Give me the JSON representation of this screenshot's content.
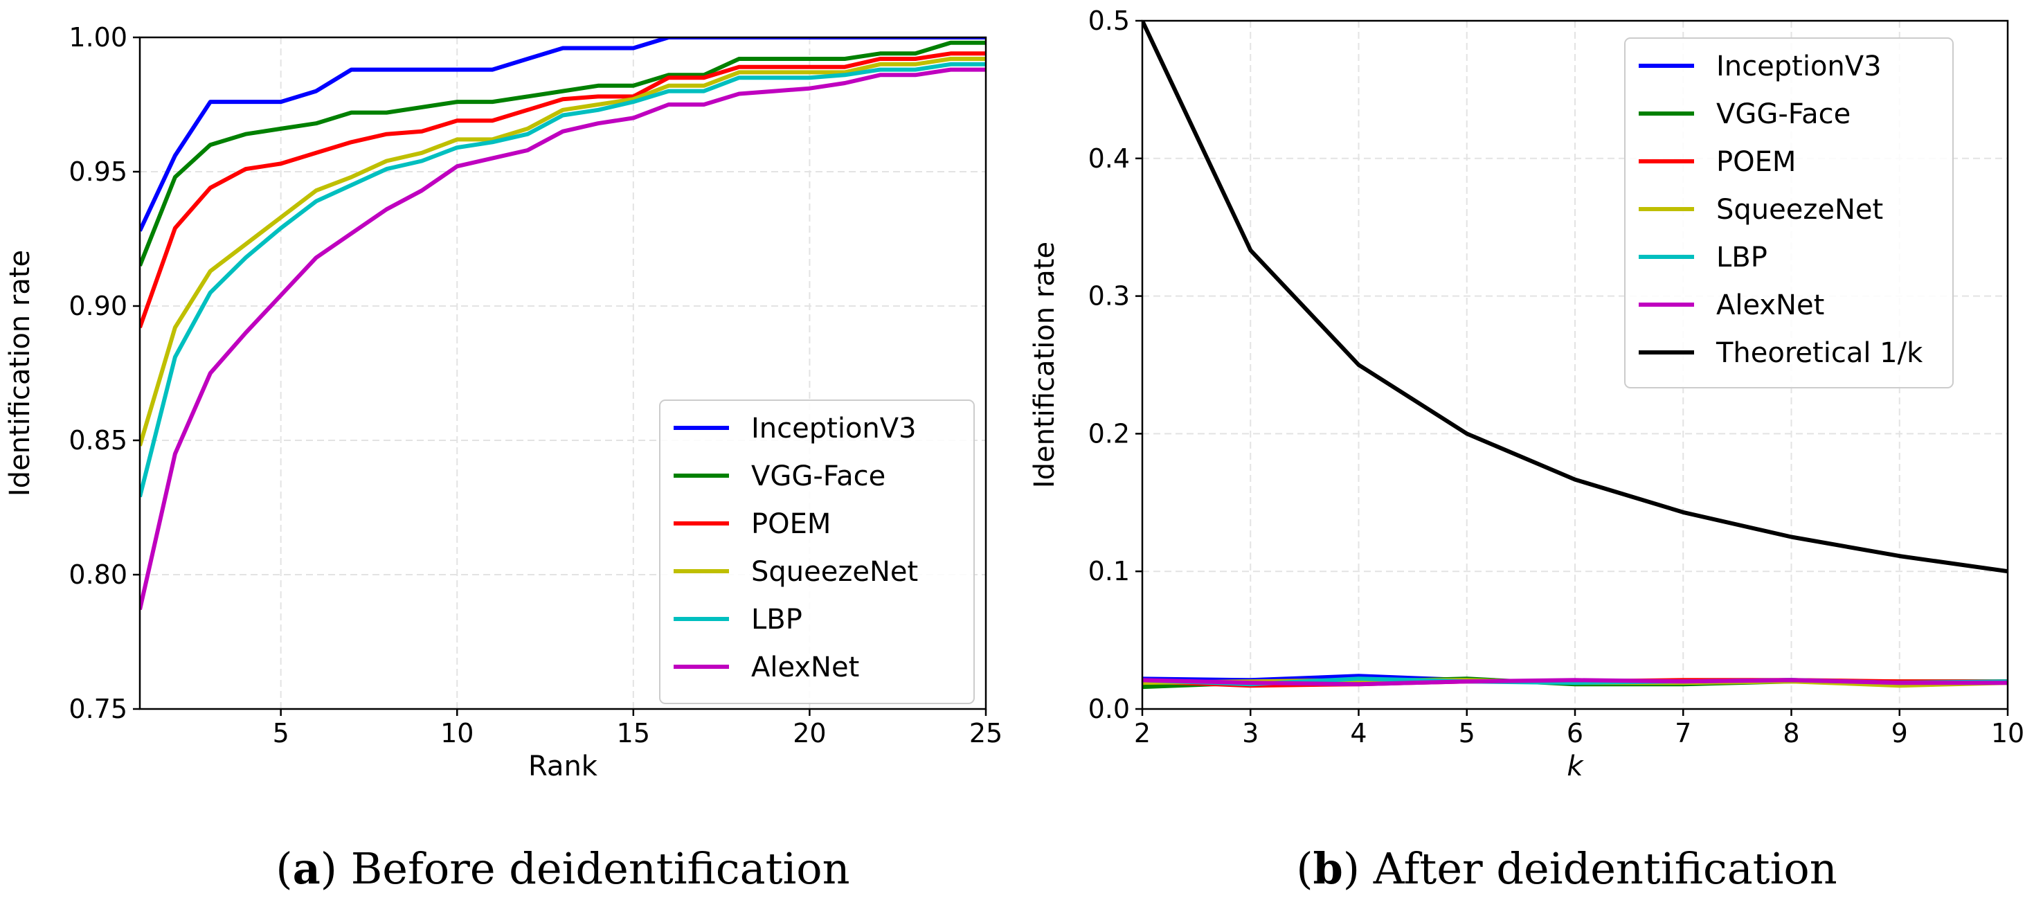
{
  "chart_data": [
    {
      "type": "line",
      "caption_letter": "a",
      "caption_text": "Before deidentification",
      "xlabel": "Rank",
      "ylabel": "Identification rate",
      "xlim": [
        1,
        25
      ],
      "ylim": [
        0.75,
        1.0
      ],
      "xticks": [
        5,
        10,
        15,
        20,
        25
      ],
      "xtick_labels": [
        "5",
        "10",
        "15",
        "20",
        "25"
      ],
      "yticks": [
        0.75,
        0.8,
        0.85,
        0.9,
        0.95,
        1.0
      ],
      "ytick_labels": [
        "0.75",
        "0.80",
        "0.85",
        "0.90",
        "0.95",
        "1.00"
      ],
      "grid": true,
      "legend_position": "lower-right",
      "x": [
        1,
        2,
        3,
        4,
        5,
        6,
        7,
        8,
        9,
        10,
        11,
        12,
        13,
        14,
        15,
        16,
        17,
        18,
        19,
        20,
        21,
        22,
        23,
        24,
        25
      ],
      "series": [
        {
          "name": "InceptionV3",
          "color": "#0000ff",
          "values": [
            0.928,
            0.956,
            0.976,
            0.976,
            0.976,
            0.98,
            0.988,
            0.988,
            0.988,
            0.988,
            0.988,
            0.992,
            0.996,
            0.996,
            0.996,
            1.0,
            1.0,
            1.0,
            1.0,
            1.0,
            1.0,
            1.0,
            1.0,
            1.0,
            1.0
          ]
        },
        {
          "name": "VGG-Face",
          "color": "#008000",
          "values": [
            0.915,
            0.948,
            0.96,
            0.964,
            0.966,
            0.968,
            0.972,
            0.972,
            0.974,
            0.976,
            0.976,
            0.978,
            0.98,
            0.982,
            0.982,
            0.986,
            0.986,
            0.992,
            0.992,
            0.992,
            0.992,
            0.994,
            0.994,
            0.998,
            0.998
          ]
        },
        {
          "name": "POEM",
          "color": "#ff0000",
          "values": [
            0.892,
            0.929,
            0.944,
            0.951,
            0.953,
            0.957,
            0.961,
            0.964,
            0.965,
            0.969,
            0.969,
            0.973,
            0.977,
            0.978,
            0.978,
            0.985,
            0.985,
            0.989,
            0.989,
            0.989,
            0.989,
            0.992,
            0.992,
            0.994,
            0.994
          ]
        },
        {
          "name": "SqueezeNet",
          "color": "#bfbf00",
          "values": [
            0.848,
            0.892,
            0.913,
            0.923,
            0.933,
            0.943,
            0.948,
            0.954,
            0.957,
            0.962,
            0.962,
            0.966,
            0.973,
            0.975,
            0.977,
            0.982,
            0.982,
            0.987,
            0.987,
            0.987,
            0.987,
            0.99,
            0.99,
            0.992,
            0.992
          ]
        },
        {
          "name": "LBP",
          "color": "#00bfbf",
          "values": [
            0.829,
            0.881,
            0.905,
            0.918,
            0.929,
            0.939,
            0.945,
            0.951,
            0.954,
            0.959,
            0.961,
            0.964,
            0.971,
            0.973,
            0.976,
            0.98,
            0.98,
            0.985,
            0.985,
            0.985,
            0.986,
            0.988,
            0.988,
            0.99,
            0.99
          ]
        },
        {
          "name": "AlexNet",
          "color": "#bf00bf",
          "values": [
            0.787,
            0.845,
            0.875,
            0.89,
            0.904,
            0.918,
            0.927,
            0.936,
            0.943,
            0.952,
            0.955,
            0.958,
            0.965,
            0.968,
            0.97,
            0.975,
            0.975,
            0.979,
            0.98,
            0.981,
            0.983,
            0.986,
            0.986,
            0.988,
            0.988
          ]
        }
      ]
    },
    {
      "type": "line",
      "caption_letter": "b",
      "caption_text": "After deidentification",
      "xlabel": "k",
      "ylabel": "Identification rate",
      "xlim": [
        2,
        10
      ],
      "ylim": [
        0.0,
        0.5
      ],
      "xticks": [
        2,
        3,
        4,
        5,
        6,
        7,
        8,
        9,
        10
      ],
      "xtick_labels": [
        "2",
        "3",
        "4",
        "5",
        "6",
        "7",
        "8",
        "9",
        "10"
      ],
      "yticks": [
        0.0,
        0.1,
        0.2,
        0.3,
        0.4,
        0.5
      ],
      "ytick_labels": [
        "0.0",
        "0.1",
        "0.2",
        "0.3",
        "0.4",
        "0.5"
      ],
      "grid": true,
      "legend_position": "top-right",
      "x": [
        2,
        3,
        4,
        5,
        6,
        7,
        8,
        9,
        10
      ],
      "series": [
        {
          "name": "InceptionV3",
          "color": "#0000ff",
          "values": [
            0.022,
            0.021,
            0.024,
            0.021,
            0.019,
            0.02,
            0.021,
            0.019,
            0.02
          ]
        },
        {
          "name": "VGG-Face",
          "color": "#008000",
          "values": [
            0.016,
            0.019,
            0.02,
            0.022,
            0.018,
            0.018,
            0.02,
            0.02,
            0.02
          ]
        },
        {
          "name": "POEM",
          "color": "#ff0000",
          "values": [
            0.02,
            0.017,
            0.018,
            0.02,
            0.02,
            0.021,
            0.021,
            0.02,
            0.02
          ]
        },
        {
          "name": "SqueezeNet",
          "color": "#bfbf00",
          "values": [
            0.019,
            0.02,
            0.021,
            0.021,
            0.019,
            0.019,
            0.02,
            0.017,
            0.019
          ]
        },
        {
          "name": "LBP",
          "color": "#00bfbf",
          "values": [
            0.021,
            0.018,
            0.022,
            0.02,
            0.019,
            0.02,
            0.021,
            0.019,
            0.02
          ]
        },
        {
          "name": "AlexNet",
          "color": "#bf00bf",
          "values": [
            0.021,
            0.019,
            0.018,
            0.02,
            0.021,
            0.02,
            0.021,
            0.019,
            0.019
          ]
        },
        {
          "name": "Theoretical 1/k",
          "color": "#000000",
          "values": [
            0.5,
            0.3333,
            0.25,
            0.2,
            0.1667,
            0.1429,
            0.125,
            0.1111,
            0.1
          ]
        }
      ]
    }
  ]
}
